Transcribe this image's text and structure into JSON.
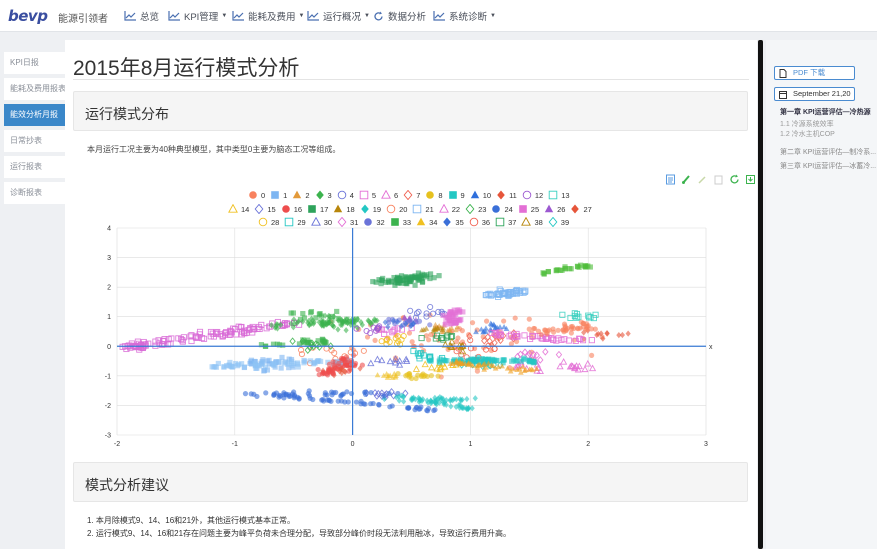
{
  "header": {
    "logo_text": "bevp",
    "app_name": "能源引领者",
    "nav": [
      {
        "label": "总览",
        "icon": "line-chart-icon",
        "has_caret": false
      },
      {
        "label": "KPI管理",
        "icon": "line-chart-icon",
        "has_caret": true
      },
      {
        "label": "能耗及费用",
        "icon": "line-chart-icon",
        "has_caret": true
      },
      {
        "label": "运行概况",
        "icon": "line-chart-icon",
        "has_caret": true
      },
      {
        "label": "数据分析",
        "icon": "refresh-icon",
        "has_caret": false
      },
      {
        "label": "系统诊断",
        "icon": "line-chart-icon",
        "has_caret": true
      }
    ]
  },
  "sidebar": {
    "items": [
      {
        "label": "KPI日报",
        "active": false
      },
      {
        "label": "能耗及费用报表",
        "active": false
      },
      {
        "label": "能效分析月报",
        "active": true
      },
      {
        "label": "日常抄表",
        "active": false
      },
      {
        "label": "运行报表",
        "active": false
      },
      {
        "label": "诊断报表",
        "active": false
      }
    ]
  },
  "main": {
    "page_title": "2015年8月运行模式分析",
    "section1_title": "运行模式分布",
    "section1_desc": "本月运行工况主要为40种典型模型，其中类型0主要为脑态工况等组成。",
    "section2_title": "模式分析建议",
    "advice": [
      "1. 本月除模式9、14、16和21外，其他运行模式基本正常。",
      "2. 运行模式9、14、16和21存在问题主要为峰平负荷未合理分配，导致部分峰价时段无法利用融冰，导致运行费用升高。"
    ]
  },
  "toolbox": [
    "data-view-icon",
    "brush-icon",
    "pen-icon",
    "clear-icon",
    "restore-icon",
    "save-image-icon"
  ],
  "toc": {
    "pdf_label": "PDF 下载",
    "date_label": "September 21,20",
    "items": [
      {
        "label": "第一章 KPI运营评估—冷热源",
        "level": "active"
      },
      {
        "label": "1.1 冷源系统效率",
        "level": "sub"
      },
      {
        "label": "1.2 冷水主机COP",
        "level": "sub"
      },
      {
        "label": "第二章 KPI运营评估—制冷系...",
        "level": "norm"
      },
      {
        "label": "第三章 KPI运营评估—冰蓄冷...",
        "level": "norm"
      }
    ]
  },
  "chart_data": {
    "type": "scatter",
    "xlim": [
      -2,
      3
    ],
    "ylim": [
      -3,
      4
    ],
    "x_ticks": [
      "-2",
      "-1",
      "0",
      "1",
      "2",
      "3"
    ],
    "y_ticks": [
      "-3",
      "-2",
      "-1",
      "0",
      "1",
      "2",
      "3",
      "4"
    ],
    "x_axis_end_label": "x",
    "grid": true,
    "legend_position": "top",
    "series": [
      {
        "name": "0",
        "symbol": "circle",
        "color": "#f8825f",
        "filled": true,
        "cx": 0.9,
        "cy": 0.2,
        "sx": 0.8,
        "sy": 0.8,
        "n": 70
      },
      {
        "name": "1",
        "symbol": "rect",
        "color": "#7eb6f2",
        "filled": true,
        "cx": -0.7,
        "cy": -0.6,
        "sx": 0.2,
        "sy": 0.2,
        "n": 30
      },
      {
        "name": "2",
        "symbol": "triangle",
        "color": "#e39a3a",
        "filled": true,
        "cx": 0.8,
        "cy": 0.6,
        "sx": 0.1,
        "sy": 0.1,
        "n": 12
      },
      {
        "name": "3",
        "symbol": "diamond",
        "color": "#3cb34e",
        "filled": true,
        "cx": -0.1,
        "cy": 0.8,
        "sx": 0.25,
        "sy": 0.2,
        "n": 35
      },
      {
        "name": "4",
        "symbol": "circle",
        "color": "#6a73d8",
        "filled": false,
        "cx": 0.6,
        "cy": 1.1,
        "sx": 0.2,
        "sy": 0.2,
        "n": 12
      },
      {
        "name": "5",
        "symbol": "rect",
        "color": "#e36fd5",
        "filled": false,
        "cx": 0.4,
        "cy": 0.5,
        "sx": 0.15,
        "sy": 0.15,
        "n": 10
      },
      {
        "name": "6",
        "symbol": "triangle",
        "color": "#e36fd5",
        "filled": false,
        "cx": 1.5,
        "cy": -0.6,
        "sx": 0.2,
        "sy": 0.2,
        "n": 14
      },
      {
        "name": "7",
        "symbol": "diamond",
        "color": "#f06050",
        "filled": false,
        "cx": 1.2,
        "cy": 0.3,
        "sx": 0.2,
        "sy": 0.2,
        "n": 12
      },
      {
        "name": "8",
        "symbol": "circle",
        "color": "#e6c11e",
        "filled": true,
        "cx": 0.5,
        "cy": -1.0,
        "sx": 0.2,
        "sy": 0.1,
        "n": 18
      },
      {
        "name": "9",
        "symbol": "rect",
        "color": "#23c7c3",
        "filled": true,
        "cx": 1.05,
        "cy": -0.5,
        "sx": 0.15,
        "sy": 0.1,
        "n": 30
      },
      {
        "name": "10",
        "symbol": "triangle",
        "color": "#2f6fdc",
        "filled": true,
        "cx": 1.2,
        "cy": 0.6,
        "sx": 0.12,
        "sy": 0.15,
        "n": 18
      },
      {
        "name": "11",
        "symbol": "diamond",
        "color": "#e6553a",
        "filled": true,
        "cx": -0.1,
        "cy": -0.8,
        "sx": 0.15,
        "sy": 0.15,
        "n": 14
      },
      {
        "name": "12",
        "symbol": "circle",
        "color": "#9c59d1",
        "filled": false,
        "cx": 0.2,
        "cy": 0.6,
        "sx": 0.15,
        "sy": 0.15,
        "n": 10
      },
      {
        "name": "13",
        "symbol": "rect",
        "color": "#39d0c0",
        "filled": false,
        "cx": 1.9,
        "cy": 1.0,
        "sx": 0.2,
        "sy": 0.1,
        "n": 12
      },
      {
        "name": "14",
        "symbol": "triangle",
        "color": "#f0c020",
        "filled": false,
        "cx": 0.7,
        "cy": -0.7,
        "sx": 0.2,
        "sy": 0.15,
        "n": 12
      },
      {
        "name": "15",
        "symbol": "diamond",
        "color": "#6a73d8",
        "filled": false,
        "cx": 0.3,
        "cy": -1.6,
        "sx": 0.2,
        "sy": 0.1,
        "n": 12
      },
      {
        "name": "16",
        "symbol": "circle",
        "color": "#ee4d4d",
        "filled": true,
        "cx": -0.05,
        "cy": -0.6,
        "sx": 0.1,
        "sy": 0.2,
        "n": 30
      },
      {
        "name": "17",
        "symbol": "rect",
        "color": "#2ea35b",
        "filled": true,
        "cx": 0.45,
        "cy": 2.2,
        "sx": 0.12,
        "sy": 0.15,
        "n": 30
      },
      {
        "name": "18",
        "symbol": "triangle",
        "color": "#b8860b",
        "filled": true,
        "cx": 0.7,
        "cy": 0.6,
        "sx": 0.1,
        "sy": 0.1,
        "n": 12
      },
      {
        "name": "19",
        "symbol": "diamond",
        "color": "#23c7c3",
        "filled": true,
        "cx": 0.7,
        "cy": -1.8,
        "sx": 0.3,
        "sy": 0.1,
        "n": 30
      },
      {
        "name": "20",
        "symbol": "circle",
        "color": "#f8825f",
        "filled": false,
        "cx": -0.2,
        "cy": -0.3,
        "sx": 0.3,
        "sy": 0.3,
        "n": 12
      },
      {
        "name": "21",
        "symbol": "rect",
        "color": "#7eb6f2",
        "filled": false,
        "cx": 1.3,
        "cy": 1.8,
        "sx": 0.1,
        "sy": 0.15,
        "n": 20
      },
      {
        "name": "22",
        "symbol": "triangle",
        "color": "#e36fd5",
        "filled": false,
        "cx": 1.9,
        "cy": -0.7,
        "sx": 0.2,
        "sy": 0.1,
        "n": 12
      },
      {
        "name": "23",
        "symbol": "diamond",
        "color": "#3cb34e",
        "filled": false,
        "cx": -0.4,
        "cy": 0.1,
        "sx": 0.2,
        "sy": 0.2,
        "n": 12
      },
      {
        "name": "24",
        "symbol": "circle",
        "color": "#3a6fd8",
        "filled": true,
        "cx": -0.3,
        "cy": -1.6,
        "sx": 0.6,
        "sy": 0.1,
        "n": 40
      },
      {
        "name": "25",
        "symbol": "rect",
        "color": "#e36fd5",
        "filled": true,
        "cx": 0.85,
        "cy": 0.8,
        "sx": 0.1,
        "sy": 0.15,
        "n": 20
      },
      {
        "name": "26",
        "symbol": "triangle",
        "color": "#9c59d1",
        "filled": true,
        "cx": 0.5,
        "cy": 0.9,
        "sx": 0.1,
        "sy": 0.1,
        "n": 10
      },
      {
        "name": "27",
        "symbol": "diamond",
        "color": "#e6553a",
        "filled": true,
        "cx": 2.1,
        "cy": 0.4,
        "sx": 0.2,
        "sy": 0.15,
        "n": 12
      },
      {
        "name": "28",
        "symbol": "circle",
        "color": "#f0c020",
        "filled": false,
        "cx": 0.35,
        "cy": 0.2,
        "sx": 0.15,
        "sy": 0.15,
        "n": 12
      },
      {
        "name": "29",
        "symbol": "rect",
        "color": "#23c7c3",
        "filled": false,
        "cx": 0.6,
        "cy": -0.3,
        "sx": 0.15,
        "sy": 0.15,
        "n": 12
      },
      {
        "name": "30",
        "symbol": "triangle",
        "color": "#6a73d8",
        "filled": false,
        "cx": 0.3,
        "cy": -0.5,
        "sx": 0.15,
        "sy": 0.15,
        "n": 10
      },
      {
        "name": "31",
        "symbol": "diamond",
        "color": "#e36fd5",
        "filled": false,
        "cx": 1.6,
        "cy": -0.3,
        "sx": 0.2,
        "sy": 0.2,
        "n": 10
      },
      {
        "name": "32",
        "symbol": "circle",
        "color": "#6a73d8",
        "filled": true,
        "cx": 0.45,
        "cy": 0.8,
        "sx": 0.15,
        "sy": 0.15,
        "n": 14
      },
      {
        "name": "33",
        "symbol": "rect",
        "color": "#3cb34e",
        "filled": true,
        "cx": -0.2,
        "cy": 1.0,
        "sx": 0.25,
        "sy": 0.2,
        "n": 20
      },
      {
        "name": "34",
        "symbol": "triangle",
        "color": "#f0c020",
        "filled": true,
        "cx": 0.3,
        "cy": -1.0,
        "sx": 0.1,
        "sy": 0.1,
        "n": 10
      },
      {
        "name": "35",
        "symbol": "diamond",
        "color": "#3a6fd8",
        "filled": true,
        "cx": 0.4,
        "cy": 0.7,
        "sx": 0.15,
        "sy": 0.15,
        "n": 10
      },
      {
        "name": "36",
        "symbol": "circle",
        "color": "#f06050",
        "filled": false,
        "cx": 1.0,
        "cy": -0.2,
        "sx": 0.3,
        "sy": 0.3,
        "n": 12
      },
      {
        "name": "37",
        "symbol": "rect",
        "color": "#2ea35b",
        "filled": false,
        "cx": 0.75,
        "cy": 0.3,
        "sx": 0.15,
        "sy": 0.15,
        "n": 10
      },
      {
        "name": "38",
        "symbol": "triangle",
        "color": "#b8860b",
        "filled": false,
        "cx": 0.9,
        "cy": 0.0,
        "sx": 0.15,
        "sy": 0.15,
        "n": 10
      },
      {
        "name": "39",
        "symbol": "diamond",
        "color": "#23c7c3",
        "filled": false,
        "cx": 1.1,
        "cy": -0.6,
        "sx": 0.15,
        "sy": 0.1,
        "n": 10
      }
    ],
    "clusters": [
      {
        "series": "5",
        "cx": -1.5,
        "cy": 0.2,
        "len": 1.2,
        "angle": 0.55,
        "w": 0.12,
        "n": 160,
        "color": "#d86ad6"
      },
      {
        "series": "1",
        "cx": -0.6,
        "cy": -0.6,
        "len": 0.6,
        "angle": 0.15,
        "w": 0.1,
        "n": 60,
        "color": "#8ec3f5"
      },
      {
        "series": "24",
        "cx": 0.0,
        "cy": -1.9,
        "len": 0.75,
        "angle": -0.35,
        "w": 0.05,
        "n": 50,
        "color": "#3a6fd8"
      },
      {
        "series": "3",
        "cx": -0.2,
        "cy": 0.8,
        "len": 0.5,
        "angle": 0.2,
        "w": 0.12,
        "n": 50,
        "color": "#3cb34e"
      },
      {
        "series": "17",
        "cx": 0.45,
        "cy": 2.3,
        "len": 0.3,
        "angle": 0.4,
        "w": 0.1,
        "n": 45,
        "color": "#2ea35b"
      },
      {
        "series": "9",
        "cx": 1.1,
        "cy": -0.5,
        "len": 0.45,
        "angle": 0.0,
        "w": 0.08,
        "n": 60,
        "color": "#23c7c3"
      },
      {
        "series": "19",
        "cx": 0.7,
        "cy": -1.9,
        "len": 0.4,
        "angle": -0.6,
        "w": 0.05,
        "n": 40,
        "color": "#23c7c3"
      },
      {
        "series": "5",
        "cx": 1.6,
        "cy": 0.3,
        "len": 0.45,
        "angle": -0.3,
        "w": 0.08,
        "n": 40,
        "color": "#e36fd5"
      },
      {
        "series": "21",
        "cx": 1.3,
        "cy": 1.8,
        "len": 0.2,
        "angle": 0.5,
        "w": 0.06,
        "n": 25,
        "color": "#7eb6f2"
      },
      {
        "series": "0",
        "cx": 1.8,
        "cy": 0.6,
        "len": 0.25,
        "angle": 0.3,
        "w": 0.12,
        "n": 40,
        "color": "#f8825f"
      },
      {
        "series": "2",
        "cx": 1.2,
        "cy": -0.7,
        "len": 0.4,
        "angle": -0.4,
        "w": 0.1,
        "n": 45,
        "color": "#f0a020"
      },
      {
        "series": "17",
        "cx": 1.8,
        "cy": 2.6,
        "len": 0.25,
        "angle": 0.6,
        "w": 0.05,
        "n": 25,
        "color": "#4cbc38"
      },
      {
        "series": "16",
        "cx": -0.15,
        "cy": -0.7,
        "len": 0.3,
        "angle": 1.2,
        "w": 0.1,
        "n": 40,
        "color": "#ee4d4d"
      },
      {
        "series": "33",
        "cx": -0.5,
        "cy": 0.1,
        "len": 0.3,
        "angle": 0.3,
        "w": 0.08,
        "n": 25,
        "color": "#3cb34e"
      },
      {
        "series": "25",
        "cx": 0.85,
        "cy": 1.1,
        "len": 0.15,
        "angle": 1.2,
        "w": 0.06,
        "n": 20,
        "color": "#e36fd5"
      }
    ]
  }
}
